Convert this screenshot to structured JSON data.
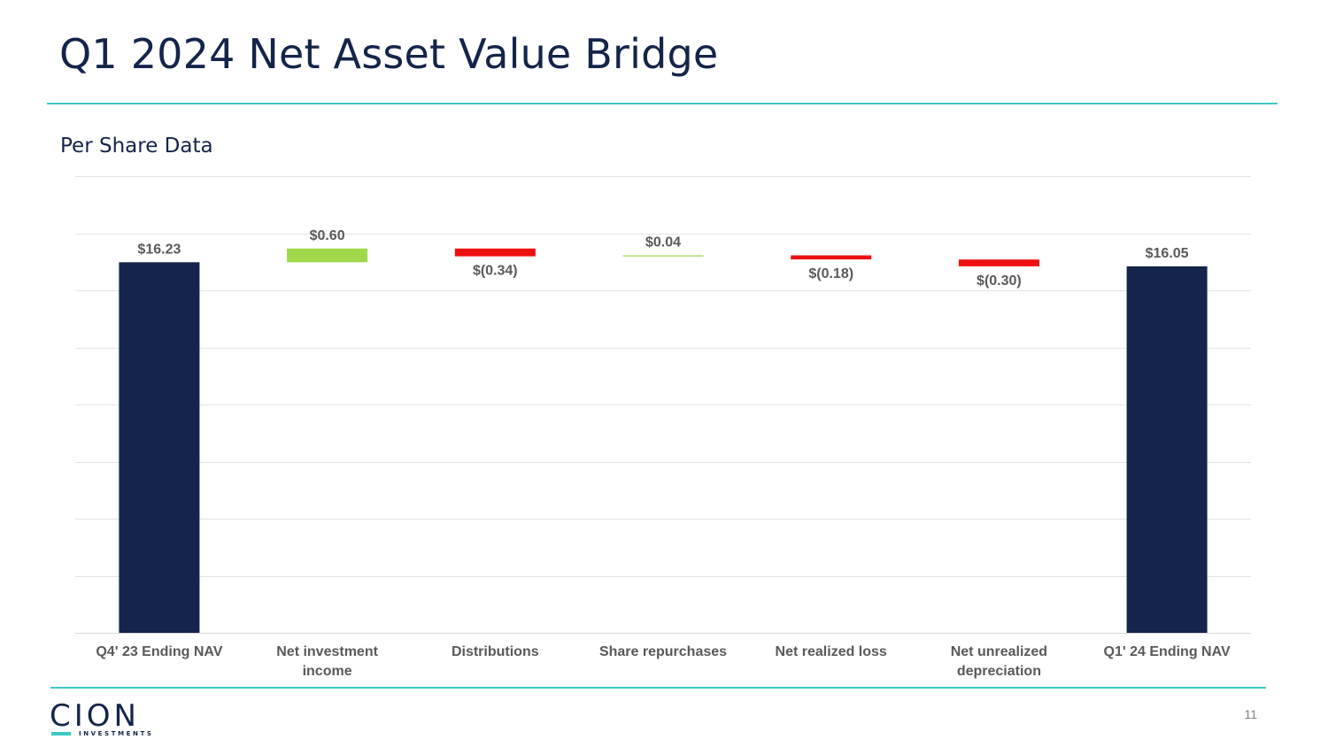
{
  "title": "Q1 2024 Net Asset Value Bridge",
  "subtitle": "Per Share Data",
  "page_number": "11",
  "logo": {
    "name": "CION",
    "tagline": "INVESTMENTS"
  },
  "colors": {
    "total": "#14244a",
    "increase": "#a1d94a",
    "decrease": "#ee1111",
    "accent": "#3cc8c5",
    "label": "#595959",
    "gridline": "#e3e3e3"
  },
  "chart_data": {
    "type": "bar",
    "subtype": "waterfall",
    "title": "Per Share Data",
    "categories": [
      "Q4' 23 Ending NAV",
      "Net investment income",
      "Distributions",
      "Share repurchases",
      "Net realized loss",
      "Net unrealized depreciation",
      "Q1' 24 Ending NAV"
    ],
    "values": [
      16.23,
      0.6,
      -0.34,
      0.04,
      -0.18,
      -0.3,
      16.05
    ],
    "kinds": [
      "total",
      "increase",
      "decrease",
      "increase",
      "decrease",
      "decrease",
      "total"
    ],
    "labels": [
      "$16.23",
      "$0.60",
      "$(0.34)",
      "$0.04",
      "$(0.18)",
      "$(0.30)",
      "$16.05"
    ],
    "ylim": [
      0,
      20
    ],
    "gridlines": [
      0,
      2.5,
      5,
      7.5,
      10,
      12.5,
      15,
      17.5,
      20
    ],
    "grid": true,
    "legend": "none",
    "xlabel": "",
    "ylabel": ""
  }
}
